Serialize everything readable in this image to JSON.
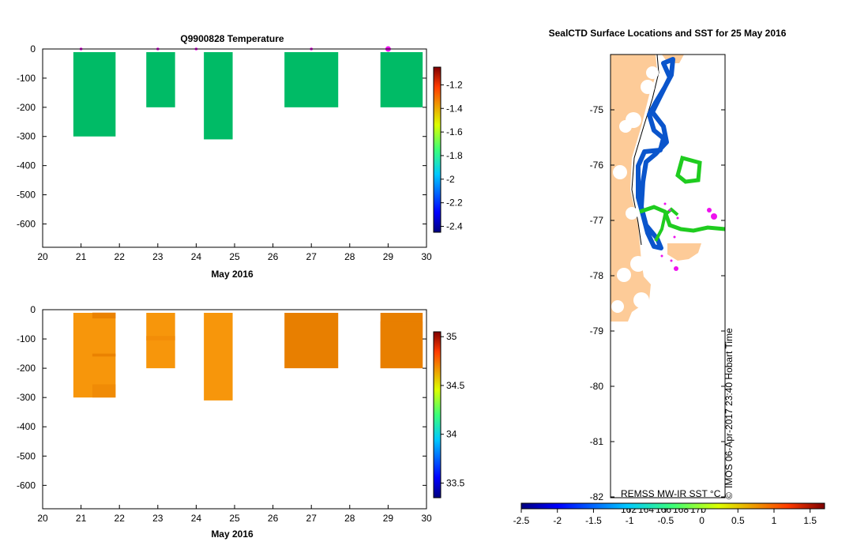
{
  "colors": {
    "temp_bar": "#00bb66",
    "sal_bar_main": "#f7960b",
    "sal_bar_dark": "#e87f00",
    "land": "#fdcb98",
    "ice_blue": "#0a55cc",
    "ice_green": "#1fcc1f",
    "magenta": "#ee11ee"
  },
  "chart_data": [
    {
      "id": "temperature",
      "type": "bar",
      "title": "Q9900828  Temperature",
      "xlabel": "May 2016",
      "ylabel": "",
      "xlim": [
        20,
        30
      ],
      "ylim": [
        -680,
        0
      ],
      "xticks": [
        20,
        21,
        22,
        23,
        24,
        25,
        26,
        27,
        28,
        29,
        30
      ],
      "yticks": [
        0,
        -100,
        -200,
        -300,
        -400,
        -500,
        -600
      ],
      "profiles": [
        {
          "x0": 20.8,
          "x1": 21.9,
          "depth": -300,
          "value": -1.9
        },
        {
          "x0": 22.7,
          "x1": 23.45,
          "depth": -200,
          "value": -1.9
        },
        {
          "x0": 24.2,
          "x1": 24.95,
          "depth": -310,
          "value": -1.9
        },
        {
          "x0": 26.3,
          "x1": 27.7,
          "depth": -200,
          "value": -1.9
        },
        {
          "x0": 28.8,
          "x1": 29.9,
          "depth": -200,
          "value": -1.9
        }
      ],
      "markers": [
        21.0,
        23.0,
        24.0,
        27.0,
        29.0
      ],
      "colorbar": {
        "min": -2.45,
        "max": -1.05,
        "ticks": [
          "-1.2",
          "-1.4",
          "-1.6",
          "-1.8",
          "-2",
          "-2.2",
          "-2.4"
        ]
      }
    },
    {
      "id": "salinity",
      "type": "bar",
      "title": "",
      "xlabel": "May 2016",
      "ylabel": "",
      "xlim": [
        20,
        30
      ],
      "ylim": [
        -680,
        0
      ],
      "xticks": [
        20,
        21,
        22,
        23,
        24,
        25,
        26,
        27,
        28,
        29,
        30
      ],
      "yticks": [
        0,
        -100,
        -200,
        -300,
        -400,
        -500,
        -600
      ],
      "profiles": [
        {
          "x0": 20.8,
          "x1": 21.9,
          "depth": -300,
          "value": 34.6
        },
        {
          "x0": 22.7,
          "x1": 23.45,
          "depth": -200,
          "value": 34.6
        },
        {
          "x0": 24.2,
          "x1": 24.95,
          "depth": -310,
          "value": 34.6
        },
        {
          "x0": 26.3,
          "x1": 27.7,
          "depth": -200,
          "value": 34.75
        },
        {
          "x0": 28.8,
          "x1": 29.9,
          "depth": -200,
          "value": 34.7
        }
      ],
      "colorbar": {
        "min": 33.35,
        "max": 35.05,
        "ticks": [
          "35",
          "34.5",
          "34",
          "33.5"
        ]
      }
    },
    {
      "id": "sst-map",
      "type": "heatmap",
      "title": "SealCTD Surface Locations and SST for 25 May 2016",
      "ylim": [
        -82,
        -74
      ],
      "yticks": [
        "-75",
        "-76",
        "-77",
        "-78",
        "-79",
        "-80",
        "-81",
        "-82"
      ],
      "lon_labels": [
        "162",
        "164",
        "166",
        "168",
        "170"
      ],
      "colorbar": {
        "min": -2.5,
        "max": 1.7,
        "ticks": [
          "-2.5",
          "-2",
          "-1.5",
          "-1",
          "-0.5",
          "0",
          "0.5",
          "1",
          "1.5"
        ]
      },
      "source_label": "REMSS MW-IR SST °C",
      "timestamp": "IMOS 06-Apr-2017 23:40 Hobart Time",
      "copyright": "©"
    }
  ]
}
